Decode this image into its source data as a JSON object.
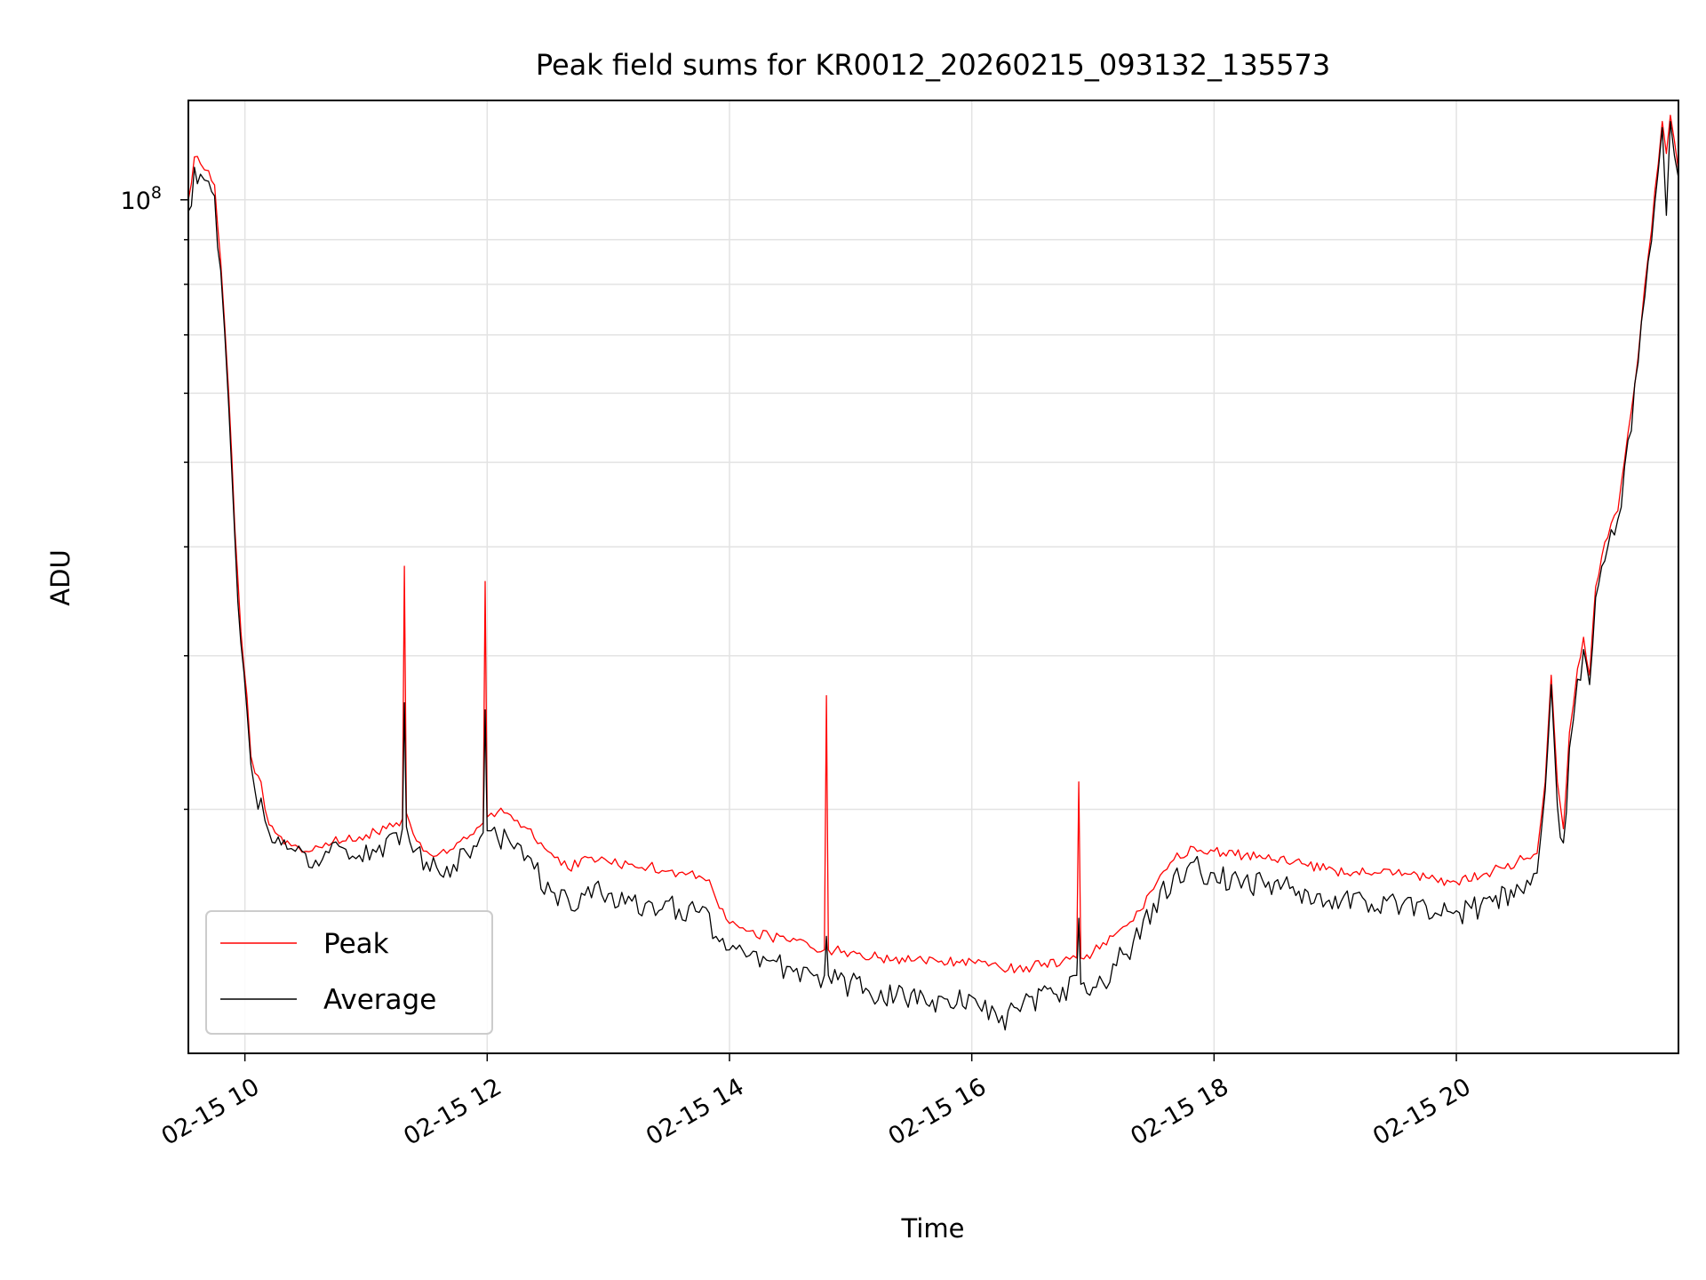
{
  "chart_data": {
    "type": "line",
    "title": "Peak field sums for KR0012_20260215_093132_135573",
    "xlabel": "Time",
    "ylabel": "ADU",
    "x_tick_labels": [
      "02-15 10",
      "02-15 12",
      "02-15 14",
      "02-15 16",
      "02-15 18",
      "02-15 20"
    ],
    "y_tick_labels": [
      {
        "base": "10",
        "exp": "8"
      }
    ],
    "y_scale": "log",
    "grid": true,
    "legend_position": "lower-left",
    "xlim": [
      "02-15 09:32",
      "02-15 21:50"
    ],
    "ylim": [
      10500000,
      130000000
    ],
    "series": [
      {
        "name": "Peak",
        "color": "#ff0000",
        "x": [
          "02-15 09:32",
          "02-15 09:35",
          "02-15 09:38",
          "02-15 09:42",
          "02-15 09:45",
          "02-15 09:48",
          "02-15 09:52",
          "02-15 09:55",
          "02-15 09:58",
          "02-15 10:01",
          "02-15 10:03",
          "02-15 10:05",
          "02-15 10:08",
          "02-15 10:10",
          "02-15 10:12",
          "02-15 10:15",
          "02-15 10:18",
          "02-15 10:21",
          "02-15 10:25",
          "02-15 10:30",
          "02-15 10:40",
          "02-15 10:50",
          "02-15 11:00",
          "02-15 11:10",
          "02-15 11:15",
          "02-15 11:18",
          "02-15 11:19",
          "02-15 11:20",
          "02-15 11:25",
          "02-15 11:30",
          "02-15 11:40",
          "02-15 11:50",
          "02-15 11:58",
          "02-15 11:59",
          "02-15 12:00",
          "02-15 12:02",
          "02-15 12:10",
          "02-15 12:20",
          "02-15 12:30",
          "02-15 12:40",
          "02-15 12:50",
          "02-15 13:00",
          "02-15 13:10",
          "02-15 13:20",
          "02-15 13:30",
          "02-15 13:40",
          "02-15 13:50",
          "02-15 13:55",
          "02-15 14:00",
          "02-15 14:10",
          "02-15 14:20",
          "02-15 14:30",
          "02-15 14:40",
          "02-15 14:47",
          "02-15 14:48",
          "02-15 14:49",
          "02-15 15:00",
          "02-15 15:15",
          "02-15 15:30",
          "02-15 15:45",
          "02-15 16:00",
          "02-15 16:10",
          "02-15 16:15",
          "02-15 16:30",
          "02-15 16:45",
          "02-15 16:52",
          "02-15 16:53",
          "02-15 16:54",
          "02-15 17:00",
          "02-15 17:10",
          "02-15 17:20",
          "02-15 17:30",
          "02-15 17:40",
          "02-15 17:50",
          "02-15 18:00",
          "02-15 18:15",
          "02-15 18:30",
          "02-15 18:45",
          "02-15 19:00",
          "02-15 19:15",
          "02-15 19:30",
          "02-15 19:45",
          "02-15 20:00",
          "02-15 20:15",
          "02-15 20:30",
          "02-15 20:40",
          "02-15 20:44",
          "02-15 20:47",
          "02-15 20:50",
          "02-15 20:53",
          "02-15 20:56",
          "02-15 21:00",
          "02-15 21:03",
          "02-15 21:06",
          "02-15 21:09",
          "02-15 21:12",
          "02-15 21:15",
          "02-15 21:20",
          "02-15 21:25",
          "02-15 21:30",
          "02-15 21:35",
          "02-15 21:40",
          "02-15 21:42",
          "02-15 21:44",
          "02-15 21:46",
          "02-15 21:50"
        ],
        "values": [
          100000000,
          112000000,
          110000000,
          108000000,
          104000000,
          85000000,
          60000000,
          42000000,
          32000000,
          27000000,
          23000000,
          22000000,
          21500000,
          20000000,
          19200000,
          18800000,
          18600000,
          18400000,
          18200000,
          17900000,
          18300000,
          18400000,
          18700000,
          19000000,
          19300000,
          19500000,
          38000000,
          19800000,
          18400000,
          17900000,
          17800000,
          18500000,
          19300000,
          36500000,
          19600000,
          19800000,
          19800000,
          19000000,
          17900000,
          17100000,
          17600000,
          17400000,
          17300000,
          17200000,
          17000000,
          16900000,
          16600000,
          15400000,
          14800000,
          14500000,
          14300000,
          14100000,
          13900000,
          13800000,
          27000000,
          13800000,
          13700000,
          13500000,
          13400000,
          13400000,
          13400000,
          13300000,
          13100000,
          13200000,
          13400000,
          13500000,
          21500000,
          13500000,
          13700000,
          14300000,
          14900000,
          16200000,
          17500000,
          18100000,
          17900000,
          17700000,
          17500000,
          17300000,
          17000000,
          16900000,
          16900000,
          16700000,
          16500000,
          16900000,
          17400000,
          17800000,
          21500000,
          28500000,
          21500000,
          19000000,
          24500000,
          29000000,
          31500000,
          28500000,
          36000000,
          39000000,
          41000000,
          44000000,
          54000000,
          66000000,
          86000000,
          110000000,
          123000000,
          113000000,
          125000000,
          108000000
        ]
      },
      {
        "name": "Average",
        "color": "#000000",
        "x": [
          "02-15 09:32",
          "02-15 09:35",
          "02-15 09:38",
          "02-15 09:42",
          "02-15 09:45",
          "02-15 09:48",
          "02-15 09:52",
          "02-15 09:55",
          "02-15 09:58",
          "02-15 10:01",
          "02-15 10:03",
          "02-15 10:05",
          "02-15 10:08",
          "02-15 10:10",
          "02-15 10:12",
          "02-15 10:15",
          "02-15 10:18",
          "02-15 10:21",
          "02-15 10:25",
          "02-15 10:30",
          "02-15 10:40",
          "02-15 10:50",
          "02-15 11:00",
          "02-15 11:10",
          "02-15 11:15",
          "02-15 11:18",
          "02-15 11:19",
          "02-15 11:20",
          "02-15 11:25",
          "02-15 11:30",
          "02-15 11:40",
          "02-15 11:50",
          "02-15 11:58",
          "02-15 11:59",
          "02-15 12:00",
          "02-15 12:02",
          "02-15 12:10",
          "02-15 12:20",
          "02-15 12:30",
          "02-15 12:40",
          "02-15 12:50",
          "02-15 13:00",
          "02-15 13:10",
          "02-15 13:20",
          "02-15 13:30",
          "02-15 13:40",
          "02-15 13:50",
          "02-15 13:55",
          "02-15 14:00",
          "02-15 14:10",
          "02-15 14:20",
          "02-15 14:30",
          "02-15 14:40",
          "02-15 14:47",
          "02-15 14:48",
          "02-15 14:49",
          "02-15 15:00",
          "02-15 15:15",
          "02-15 15:30",
          "02-15 15:45",
          "02-15 16:00",
          "02-15 16:10",
          "02-15 16:15",
          "02-15 16:30",
          "02-15 16:45",
          "02-15 16:52",
          "02-15 16:53",
          "02-15 16:54",
          "02-15 17:00",
          "02-15 17:10",
          "02-15 17:20",
          "02-15 17:30",
          "02-15 17:40",
          "02-15 17:50",
          "02-15 18:00",
          "02-15 18:15",
          "02-15 18:30",
          "02-15 18:45",
          "02-15 19:00",
          "02-15 19:15",
          "02-15 19:30",
          "02-15 19:45",
          "02-15 20:00",
          "02-15 20:15",
          "02-15 20:30",
          "02-15 20:40",
          "02-15 20:44",
          "02-15 20:47",
          "02-15 20:50",
          "02-15 20:53",
          "02-15 20:56",
          "02-15 21:00",
          "02-15 21:03",
          "02-15 21:06",
          "02-15 21:09",
          "02-15 21:12",
          "02-15 21:15",
          "02-15 21:20",
          "02-15 21:25",
          "02-15 21:30",
          "02-15 21:35",
          "02-15 21:40",
          "02-15 21:42",
          "02-15 21:44",
          "02-15 21:46",
          "02-15 21:50"
        ],
        "values": [
          97000000,
          109000000,
          107000000,
          105000000,
          101000000,
          83000000,
          58000000,
          41000000,
          31000000,
          26000000,
          22500000,
          21000000,
          20600000,
          19400000,
          18800000,
          18300000,
          18200000,
          18000000,
          17900000,
          17800000,
          17900000,
          18000000,
          18200000,
          18500000,
          18800000,
          19000000,
          26500000,
          19100000,
          18000000,
          17400000,
          17200000,
          17800000,
          18800000,
          26000000,
          18900000,
          18900000,
          18600000,
          17700000,
          16500000,
          15800000,
          16300000,
          16000000,
          15900000,
          15700000,
          15700000,
          15500000,
          15200000,
          14100000,
          13800000,
          13600000,
          13400000,
          13200000,
          13000000,
          12900000,
          14300000,
          12900000,
          12700000,
          12400000,
          12300000,
          12200000,
          12200000,
          11900000,
          11600000,
          12200000,
          12500000,
          12900000,
          15000000,
          12600000,
          12500000,
          13300000,
          14100000,
          15600000,
          16800000,
          17400000,
          16900000,
          16600000,
          16500000,
          16200000,
          15900000,
          15700000,
          15700000,
          15500000,
          15300000,
          15800000,
          16400000,
          16900000,
          21000000,
          27800000,
          20200000,
          18300000,
          23500000,
          28200000,
          30500000,
          27800000,
          35000000,
          38000000,
          40000000,
          43000000,
          53000000,
          65000000,
          85000000,
          108000000,
          121000000,
          96000000,
          123000000,
          106000000
        ]
      }
    ]
  }
}
